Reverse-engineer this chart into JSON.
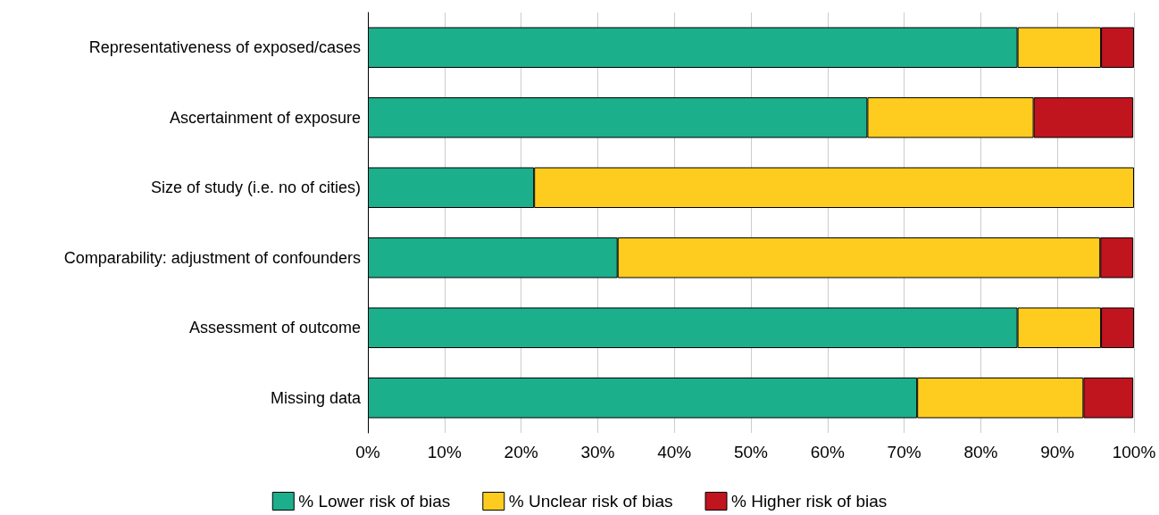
{
  "chart_data": {
    "type": "bar",
    "orientation": "horizontal",
    "stacked": true,
    "categories": [
      "Representativeness of exposed/cases",
      "Ascertainment of exposure",
      "Size of study (i.e. no of cities)",
      "Comparability: adjustment of confounders",
      "Assessment of outcome",
      "Missing data"
    ],
    "series": [
      {
        "name": "% Lower risk of bias",
        "color": "#1caf8c",
        "values": [
          84.8,
          65.2,
          21.7,
          32.6,
          84.8,
          71.7
        ]
      },
      {
        "name": "% Unclear risk of bias",
        "color": "#fecc1f",
        "values": [
          10.9,
          21.7,
          78.3,
          63.0,
          10.9,
          21.7
        ]
      },
      {
        "name": "% Higher risk of bias",
        "color": "#c0141f",
        "values": [
          4.3,
          13.0,
          null,
          4.3,
          4.3,
          6.5
        ]
      }
    ],
    "xlim": [
      0,
      100
    ],
    "xticks": [
      {
        "value": 0,
        "label": "0%"
      },
      {
        "value": 10,
        "label": "10%"
      },
      {
        "value": 20,
        "label": "20%"
      },
      {
        "value": 30,
        "label": "30%"
      },
      {
        "value": 40,
        "label": "40%"
      },
      {
        "value": 50,
        "label": "50%"
      },
      {
        "value": 60,
        "label": "60%"
      },
      {
        "value": 70,
        "label": "70%"
      },
      {
        "value": 80,
        "label": "80%"
      },
      {
        "value": 90,
        "label": "90%"
      },
      {
        "value": 100,
        "label": "100%"
      }
    ],
    "grid": "x",
    "legend": "bottom"
  }
}
